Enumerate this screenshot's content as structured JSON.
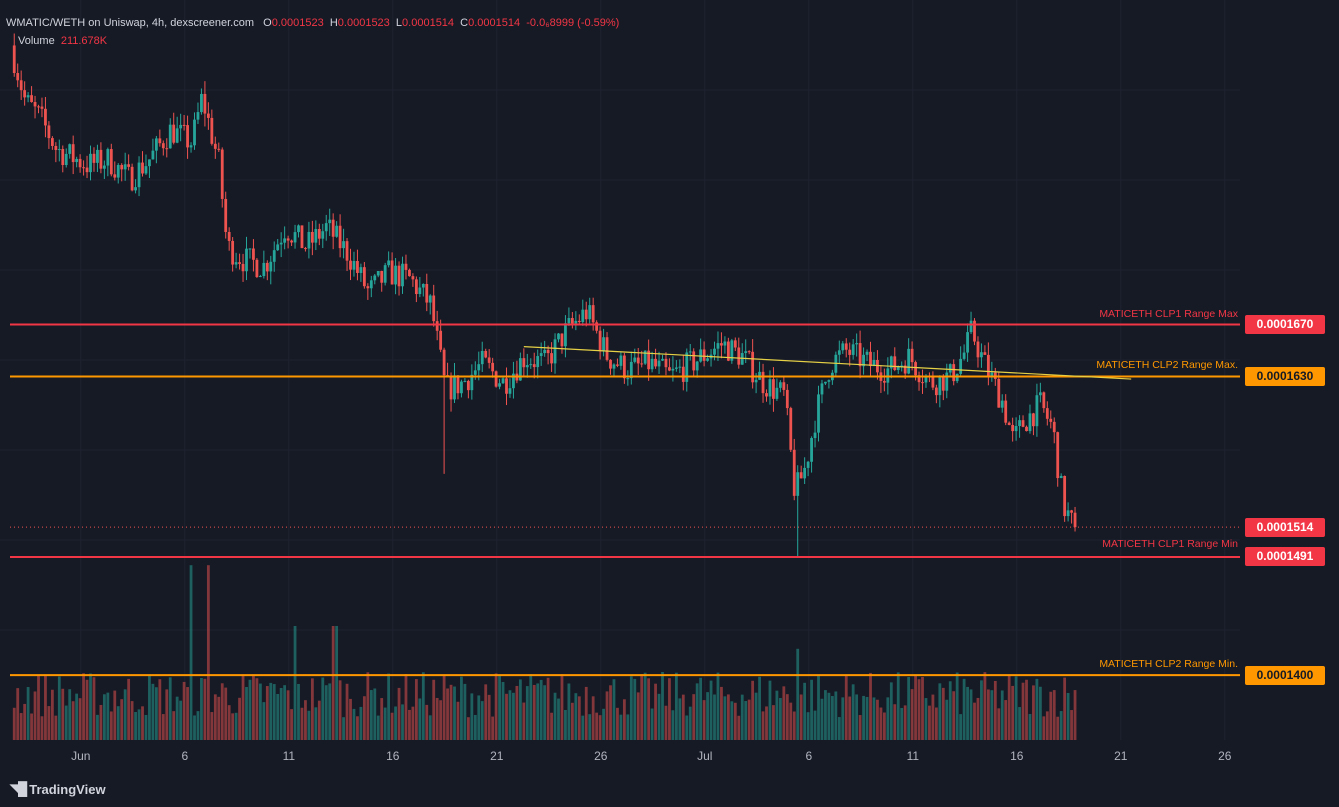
{
  "header": {
    "symbol": "WMATIC/WETH on Uniswap, 4h, dexscreener.com",
    "o_label": "O",
    "o_value": "0.0001523",
    "h_label": "H",
    "h_value": "0.0001523",
    "l_label": "L",
    "l_value": "0.0001514",
    "c_label": "C",
    "c_value": "0.0001514",
    "change": "-0.0₆8999 (-0.59%)",
    "volume_label": "Volume",
    "volume_value": "211.678K"
  },
  "brand": {
    "name": "TradingView",
    "icon": "tradingview-logo-icon"
  },
  "colors": {
    "background": "#161a25",
    "up": "#26a69a",
    "down": "#ef5350",
    "clp1": "#f23645",
    "clp2": "#ff9800",
    "trendline": "#e6d146"
  },
  "chart_data": {
    "type": "candlestick",
    "title": "WMATIC/WETH on Uniswap, 4h",
    "ylim": [
      0.000135,
      0.000192
    ],
    "x_ticks": [
      {
        "label": "Jun",
        "day": 1
      },
      {
        "label": "6",
        "day": 6
      },
      {
        "label": "11",
        "day": 11
      },
      {
        "label": "16",
        "day": 16
      },
      {
        "label": "21",
        "day": 21
      },
      {
        "label": "26",
        "day": 26
      },
      {
        "label": "Jul",
        "day": 31
      },
      {
        "label": "6",
        "day": 36
      },
      {
        "label": "11",
        "day": 41
      },
      {
        "label": "16",
        "day": 46
      },
      {
        "label": "21",
        "day": 51
      },
      {
        "label": "26",
        "day": 56
      }
    ],
    "price_path": [
      [
        -2.2,
        0.0001885
      ],
      [
        -1.5,
        0.0001842
      ],
      [
        -0.8,
        0.000183
      ],
      [
        0.0,
        0.0001805
      ],
      [
        1.5,
        0.0001793
      ],
      [
        2.5,
        0.0001797
      ],
      [
        3.5,
        0.0001782
      ],
      [
        4.5,
        0.0001798
      ],
      [
        5.5,
        0.000182
      ],
      [
        6.5,
        0.000181
      ],
      [
        7.0,
        0.0001845
      ],
      [
        7.8,
        0.0001795
      ],
      [
        8.2,
        0.000173
      ],
      [
        9.0,
        0.000172
      ],
      [
        10.0,
        0.0001715
      ],
      [
        11.0,
        0.0001745
      ],
      [
        12.0,
        0.000173
      ],
      [
        13.0,
        0.0001745
      ],
      [
        14.0,
        0.0001725
      ],
      [
        15.0,
        0.0001695
      ],
      [
        16.0,
        0.000171
      ],
      [
        17.0,
        0.0001705
      ],
      [
        18.0,
        0.0001685
      ],
      [
        18.7,
        0.000162
      ],
      [
        19.5,
        0.0001625
      ],
      [
        20.5,
        0.000164
      ],
      [
        21.5,
        0.0001625
      ],
      [
        22.5,
        0.0001645
      ],
      [
        23.5,
        0.000164
      ],
      [
        24.5,
        0.0001665
      ],
      [
        25.5,
        0.000168
      ],
      [
        26.5,
        0.0001645
      ],
      [
        27.5,
        0.0001635
      ],
      [
        28.5,
        0.000164
      ],
      [
        29.5,
        0.000163
      ],
      [
        30.5,
        0.000164
      ],
      [
        32.0,
        0.0001655
      ],
      [
        33.0,
        0.0001645
      ],
      [
        34.0,
        0.0001625
      ],
      [
        35.0,
        0.0001615
      ],
      [
        35.5,
        0.000154
      ],
      [
        36.0,
        0.000156
      ],
      [
        36.5,
        0.00016
      ],
      [
        37.2,
        0.000164
      ],
      [
        38.0,
        0.000165
      ],
      [
        39.0,
        0.000164
      ],
      [
        40.0,
        0.0001635
      ],
      [
        41.0,
        0.0001645
      ],
      [
        42.0,
        0.0001625
      ],
      [
        43.0,
        0.000163
      ],
      [
        43.7,
        0.000165
      ],
      [
        44.0,
        0.0001665
      ],
      [
        44.6,
        0.000164
      ],
      [
        45.5,
        0.000161
      ],
      [
        46.0,
        0.000158
      ],
      [
        46.5,
        0.0001595
      ],
      [
        47.3,
        0.0001608
      ],
      [
        47.9,
        0.000159
      ],
      [
        48.4,
        0.0001531
      ],
      [
        48.9,
        0.0001514
      ]
    ],
    "volume_ylim": [
      0,
      250000
    ],
    "trendline": {
      "start": {
        "day": 22.3,
        "price": 0.0001653
      },
      "end": {
        "day": 51.5,
        "price": 0.0001628
      }
    },
    "levels": [
      {
        "name": "MATICETH CLP1 Range Max",
        "price": 0.000167,
        "label": "0.0001670",
        "color": "#f23645",
        "text_color": "#f23645"
      },
      {
        "name": "MATICETH CLP2 Range Max.",
        "price": 0.000163,
        "label": "0.0001630",
        "color": "#ff9800",
        "text_color": "#ff9800"
      },
      {
        "name": "MATICETH CLP1 Range Min",
        "price": 0.0001491,
        "label": "0.0001491",
        "color": "#f23645",
        "text_color": "#f23645"
      },
      {
        "name": "MATICETH CLP2 Range Min.",
        "price": 0.00014,
        "label": "0.0001400",
        "color": "#ff9800",
        "text_color": "#ff9800"
      }
    ],
    "current_price": {
      "price": 0.0001514,
      "label": "0.0001514"
    }
  }
}
